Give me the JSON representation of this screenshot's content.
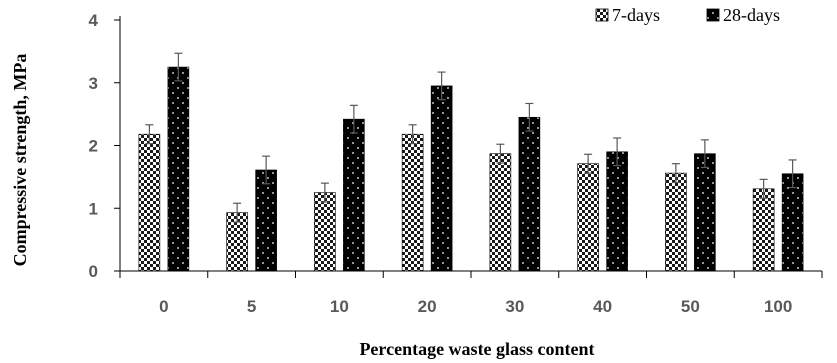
{
  "chart_data": {
    "type": "bar",
    "title": "",
    "xlabel": "Percentage waste glass content",
    "ylabel": "Compressive strength, MPa",
    "categories": [
      "0",
      "5",
      "10",
      "20",
      "30",
      "40",
      "50",
      "100"
    ],
    "ylim": [
      0,
      4
    ],
    "yticks": [
      "0",
      "1",
      "2",
      "3",
      "4"
    ],
    "grid": false,
    "legend_position": "top-right",
    "series": [
      {
        "name": "7-days",
        "values": [
          2.18,
          0.93,
          1.25,
          2.18,
          1.87,
          1.71,
          1.56,
          1.31
        ],
        "error": [
          0.15,
          0.15,
          0.15,
          0.15,
          0.15,
          0.15,
          0.15,
          0.15
        ],
        "pattern": "checkered"
      },
      {
        "name": "28-days",
        "values": [
          3.25,
          1.61,
          2.42,
          2.95,
          2.45,
          1.9,
          1.87,
          1.55
        ],
        "error": [
          0.22,
          0.22,
          0.22,
          0.22,
          0.22,
          0.22,
          0.22,
          0.22
        ],
        "pattern": "black-dotted"
      }
    ]
  }
}
